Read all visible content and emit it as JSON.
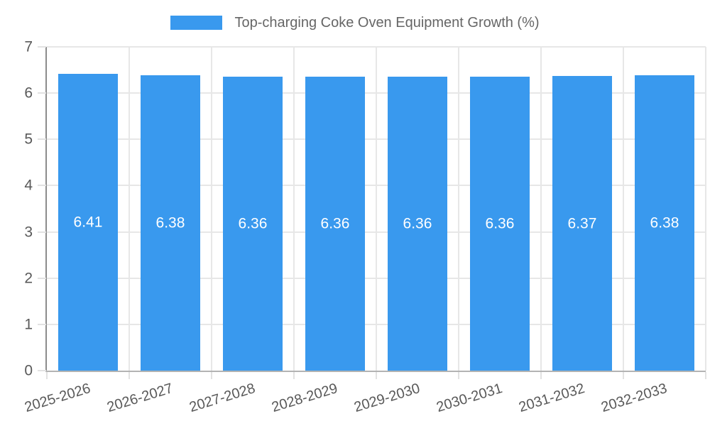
{
  "chart_data": {
    "type": "bar",
    "title": "Top-charging Coke Oven Equipment Growth (%)",
    "categories": [
      "2025-2026",
      "2026-2027",
      "2027-2028",
      "2028-2029",
      "2029-2030",
      "2030-2031",
      "2031-2032",
      "2032-2033"
    ],
    "series": [
      {
        "name": "Top-charging Coke Oven Equipment Growth (%)",
        "color": "#3999ee",
        "values": [
          6.41,
          6.38,
          6.36,
          6.36,
          6.36,
          6.36,
          6.37,
          6.38
        ]
      }
    ],
    "xlabel": "",
    "ylabel": "",
    "ylim": [
      0,
      7
    ],
    "yticks": [
      0,
      1,
      2,
      3,
      4,
      5,
      6,
      7
    ],
    "grid": true,
    "legend_position": "top",
    "value_labels_shown": true,
    "value_label_color": "#ffffff",
    "value_label_decimals": 2,
    "bar_width_fraction": 0.72,
    "x_tick_rotation_deg": -17,
    "colors": {
      "grid": "#e7e7e7",
      "tick": "#e2e2e2",
      "axis_y": "#8c8c8c",
      "axis_x": "#b3b3b3",
      "axis_text": "#595959",
      "legend_text": "#666666"
    }
  }
}
